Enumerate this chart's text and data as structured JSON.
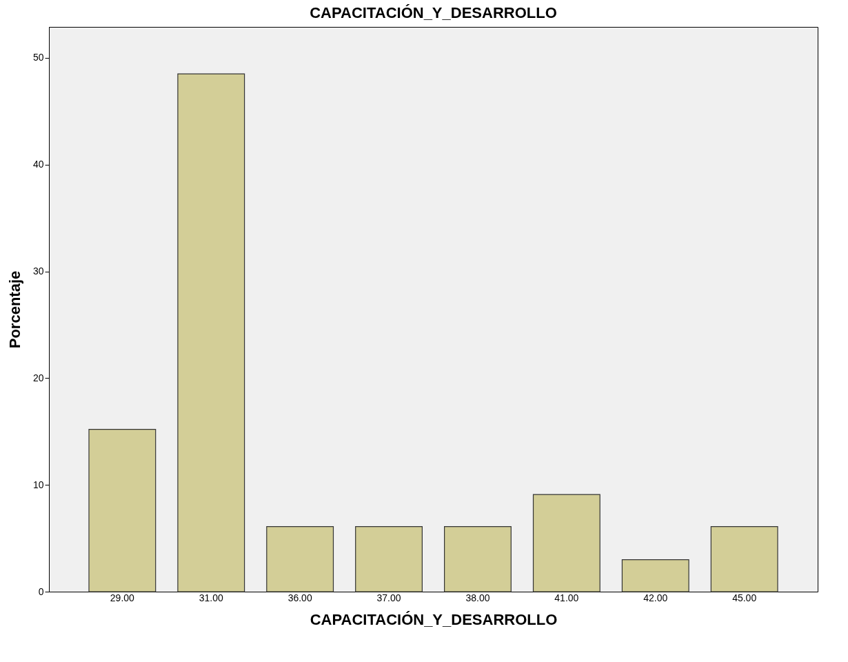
{
  "chart_data": {
    "type": "bar",
    "title": "CAPACITACIÓN_Y_DESARROLLO",
    "xlabel": "CAPACITACIÓN_Y_DESARROLLO",
    "ylabel": "Porcentaje",
    "categories": [
      "29.00",
      "31.00",
      "36.00",
      "37.00",
      "38.00",
      "41.00",
      "42.00",
      "45.00"
    ],
    "values": [
      15.2,
      48.5,
      6.1,
      6.1,
      6.1,
      9.1,
      3.0,
      6.1
    ],
    "color": "#d3ce97",
    "ylim": [
      0,
      52.9
    ],
    "yticks": [
      0,
      10,
      20,
      30,
      40,
      50
    ],
    "grid": false
  }
}
